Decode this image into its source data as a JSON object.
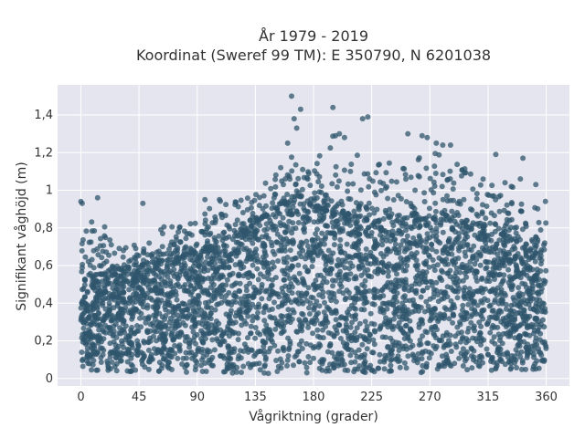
{
  "chart_data": {
    "type": "scatter",
    "title_line1": "År 1979 - 2019",
    "title_line2": "Koordinat (Sweref 99 TM): E 350790, N 6201038",
    "xlabel": "Vågriktning (grader)",
    "ylabel": "Signifikant våghöjd (m)",
    "xlim": [
      -18,
      378
    ],
    "ylim": [
      -0.04,
      1.56
    ],
    "x_ticks": [
      0,
      45,
      90,
      135,
      180,
      225,
      270,
      315,
      360
    ],
    "x_tick_labels": [
      "0",
      "45",
      "90",
      "135",
      "180",
      "225",
      "270",
      "315",
      "360"
    ],
    "y_ticks": [
      0,
      0.2,
      0.4,
      0.6,
      0.8,
      1.0,
      1.2,
      1.4
    ],
    "y_tick_labels": [
      "0",
      "0,2",
      "0,4",
      "0,6",
      "0,8",
      "1",
      "1,2",
      "1,4"
    ],
    "grid": true,
    "marker_color": "#2f566c",
    "plot_background": "#e5e5ef",
    "density_envelope": {
      "direction_deg": [
        0,
        10,
        20,
        30,
        45,
        60,
        75,
        90,
        105,
        120,
        135,
        150,
        165,
        180,
        195,
        210,
        225,
        240,
        255,
        270,
        285,
        300,
        315,
        330,
        345,
        360
      ],
      "dense_upper_m": [
        0.55,
        0.55,
        0.56,
        0.57,
        0.6,
        0.62,
        0.64,
        0.66,
        0.72,
        0.76,
        0.82,
        0.9,
        0.93,
        0.92,
        0.88,
        0.86,
        0.84,
        0.83,
        0.84,
        0.85,
        0.84,
        0.83,
        0.8,
        0.75,
        0.7,
        0.6
      ],
      "outer_upper_m": [
        0.8,
        0.85,
        0.82,
        0.7,
        0.75,
        0.8,
        0.82,
        0.85,
        0.95,
        0.95,
        1.0,
        1.1,
        1.2,
        1.15,
        1.3,
        1.3,
        1.2,
        1.15,
        1.15,
        1.25,
        1.2,
        1.1,
        1.05,
        1.05,
        1.0,
        0.95
      ],
      "lower_m": [
        0.05,
        0.04,
        0.04,
        0.04,
        0.03,
        0.03,
        0.03,
        0.03,
        0.03,
        0.02,
        0.02,
        0.02,
        0.02,
        0.03,
        0.03,
        0.03,
        0.03,
        0.03,
        0.03,
        0.03,
        0.03,
        0.03,
        0.03,
        0.04,
        0.04,
        0.05
      ]
    },
    "highlighted_points": [
      {
        "x": 0,
        "y": 0.94
      },
      {
        "x": 1,
        "y": 0.93
      },
      {
        "x": 13,
        "y": 0.96
      },
      {
        "x": 48,
        "y": 0.93
      },
      {
        "x": 96,
        "y": 0.95
      },
      {
        "x": 160,
        "y": 1.25
      },
      {
        "x": 163,
        "y": 1.5
      },
      {
        "x": 165,
        "y": 1.38
      },
      {
        "x": 167,
        "y": 1.33
      },
      {
        "x": 170,
        "y": 1.43
      },
      {
        "x": 195,
        "y": 1.44
      },
      {
        "x": 197,
        "y": 1.29
      },
      {
        "x": 200,
        "y": 1.3
      },
      {
        "x": 204,
        "y": 1.28
      },
      {
        "x": 218,
        "y": 1.38
      },
      {
        "x": 222,
        "y": 1.39
      },
      {
        "x": 253,
        "y": 1.3
      },
      {
        "x": 264,
        "y": 1.29
      },
      {
        "x": 268,
        "y": 1.28
      },
      {
        "x": 275,
        "y": 1.25
      },
      {
        "x": 280,
        "y": 1.24
      },
      {
        "x": 286,
        "y": 1.24
      },
      {
        "x": 321,
        "y": 1.19
      },
      {
        "x": 333,
        "y": 1.02
      },
      {
        "x": 340,
        "y": 1.06
      },
      {
        "x": 342,
        "y": 1.17
      },
      {
        "x": 352,
        "y": 1.03
      }
    ]
  }
}
